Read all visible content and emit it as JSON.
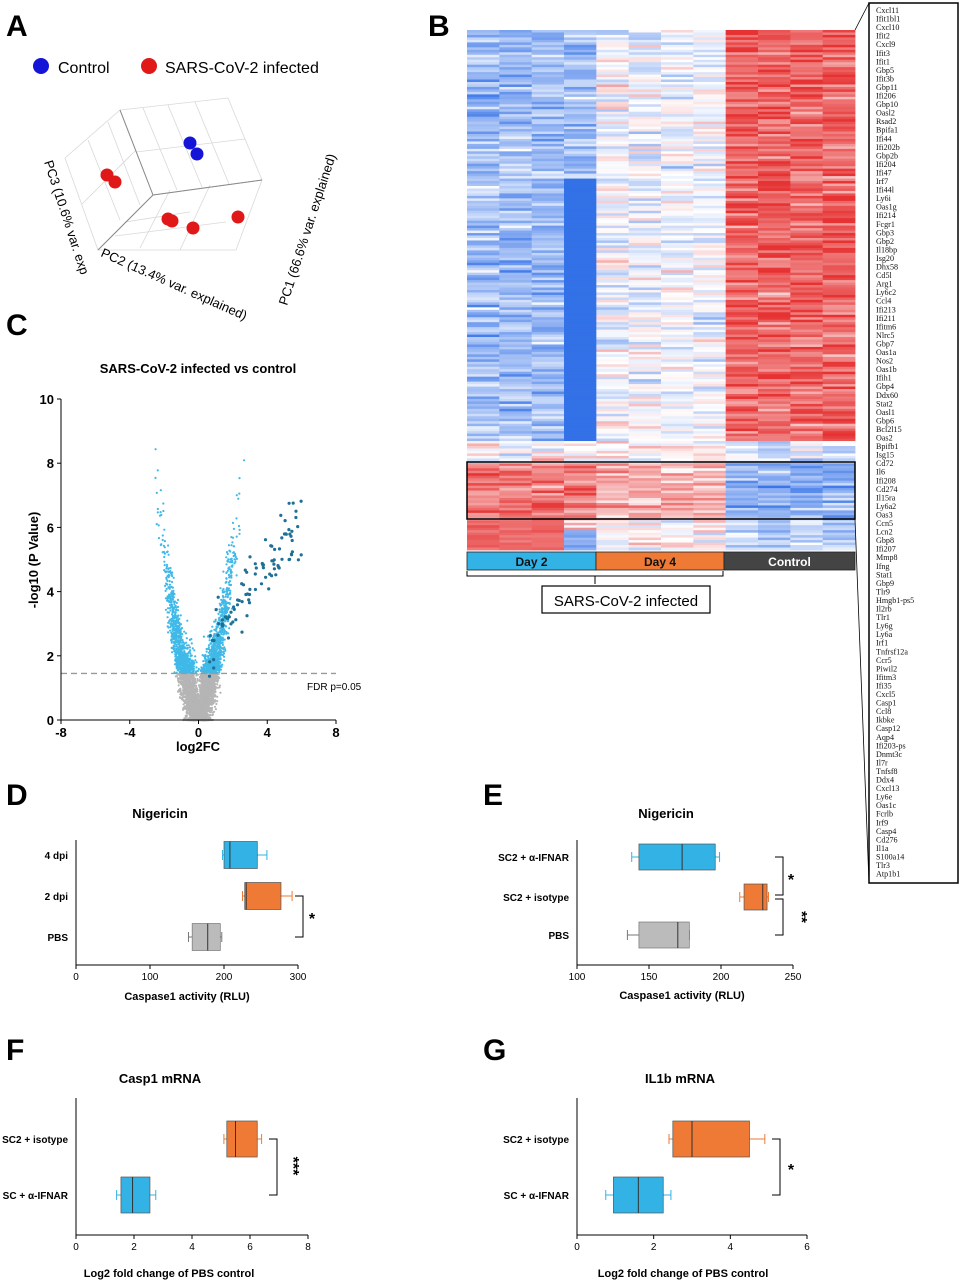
{
  "panels": {
    "A": {
      "letter": "A",
      "legend": [
        {
          "label": "Control",
          "color": "#1515d8"
        },
        {
          "label": "SARS-CoV-2 infected",
          "color": "#e01818"
        }
      ],
      "axis_labels": {
        "pc1": "PC1 (66.6% var. explained)",
        "pc2": "PC2 (13.4% var. explained)",
        "pc3": "PC3 (10.6% var. exp"
      },
      "chart_data": {
        "type": "scatter",
        "groups": [
          {
            "name": "Control",
            "count": 2
          },
          {
            "name": "SARS-CoV-2 infected",
            "count": 6
          }
        ]
      }
    },
    "B": {
      "letter": "B",
      "group_labels": [
        "Day 2",
        "Day 4",
        "Control"
      ],
      "group_colors": [
        "#33b2e6",
        "#ee7a35",
        "#444444"
      ],
      "bracket_label": "SARS-CoV-2 infected",
      "genes": [
        "Cxcl11",
        "Ifit1bl1",
        "Cxcl10",
        "Ifit2",
        "Cxcl9",
        "Ifit3",
        "Ifit1",
        "Gbp5",
        "Ifit3b",
        "Gbp11",
        "Ifi206",
        "Gbp10",
        "Oasl2",
        "Rsad2",
        "Bpifa1",
        "Ifi44",
        "Ifi202b",
        "Gbp2b",
        "Ifi204",
        "Ifi47",
        "Irf7",
        "Ifi44l",
        "Ly6i",
        "Oas1g",
        "Ifi214",
        "Fcgr1",
        "Gbp3",
        "Gbp2",
        "Il18bp",
        "Isg20",
        "Dhx58",
        "Cd5l",
        "Arg1",
        "Ly6c2",
        "Ccl4",
        "Ifi213",
        "Ifi211",
        "Ifitm6",
        "Nlrc5",
        "Gbp7",
        "Oas1a",
        "Nos2",
        "Oas1b",
        "Ifih1",
        "Gbp4",
        "Ddx60",
        "Stat2",
        "Oasl1",
        "Gbp6",
        "Bcl2l15",
        "Oas2",
        "Bpifb1",
        "Isg15",
        "Cd72",
        "Il6",
        "Ifi208",
        "Cd274",
        "Il15ra",
        "Ly6a2",
        "Oas3",
        "Ccn5",
        "Lcn2",
        "Gbp8",
        "Ifi207",
        "Mmp8",
        "Ifng",
        "Stat1",
        "Gbp9",
        "Tlr9",
        "Hmgb1-ps5",
        "Il2rb",
        "Tlr1",
        "Ly6g",
        "Ly6a",
        "Irf1",
        "Tnfrsf12a",
        "Ccr5",
        "Piwil2",
        "Ifitm3",
        "Ifi35",
        "Cxcl5",
        "Casp1",
        "Ccl8",
        "Ikbke",
        "Casp12",
        "Aqp4",
        "Ifi203-ps",
        "Dnmt3c",
        "Il7r",
        "Tnfsf8",
        "Ddx4",
        "Cxcl13",
        "Ly6e",
        "Oas1c",
        "Fcrlb",
        "Irf9",
        "Casp4",
        "Cd276",
        "Il1a",
        "S100a14",
        "Tlr3",
        "Atp1b1"
      ]
    },
    "C": {
      "letter": "C",
      "title": "SARS-CoV-2 infected  vs  control",
      "xlabel": "log2FC",
      "ylabel": "-log10 (P Value)",
      "fdr_label": "FDR p=0.05",
      "chart_data": {
        "type": "scatter",
        "xlim": [
          -8,
          8
        ],
        "ylim": [
          0,
          10
        ],
        "xticks": [
          -8,
          -4,
          0,
          4,
          8
        ],
        "yticks": [
          0,
          2,
          4,
          6,
          8,
          10
        ],
        "fdr_threshold_y": 1.45
      }
    },
    "D": {
      "letter": "D",
      "title": "Nigericin",
      "xlabel": "Caspase1 activity (RLU)",
      "sig": "*",
      "chart_data": {
        "type": "bar",
        "categories": [
          "4 dpi",
          "2 dpi",
          "PBS"
        ],
        "xlim": [
          0,
          300
        ],
        "xticks": [
          0,
          100,
          200,
          300
        ],
        "boxes": [
          {
            "min": 198,
            "q1": 200,
            "median": 208,
            "q3": 245,
            "max": 258,
            "color": "#33b2e6"
          },
          {
            "min": 225,
            "q1": 228,
            "median": 230,
            "q3": 277,
            "max": 292,
            "color": "#ee7a35"
          },
          {
            "min": 152,
            "q1": 157,
            "median": 178,
            "q3": 195,
            "max": 197,
            "color": "#bbbbbb"
          }
        ]
      }
    },
    "E": {
      "letter": "E",
      "title": "Nigericin",
      "xlabel": "Caspase1 activity (RLU)",
      "sig": [
        "*",
        "**"
      ],
      "chart_data": {
        "type": "bar",
        "categories": [
          "SC2 + α-IFNAR",
          "SC2 + isotype",
          "PBS"
        ],
        "xlim": [
          100,
          250
        ],
        "xticks": [
          100,
          150,
          200,
          250
        ],
        "boxes": [
          {
            "min": 138,
            "q1": 143,
            "median": 173,
            "q3": 196,
            "max": 199,
            "color": "#33b2e6"
          },
          {
            "min": 213,
            "q1": 216,
            "median": 229,
            "q3": 232,
            "max": 233,
            "color": "#ee7a35"
          },
          {
            "min": 135,
            "q1": 143,
            "median": 170,
            "q3": 178,
            "max": 178,
            "color": "#bbbbbb"
          }
        ]
      }
    },
    "F": {
      "letter": "F",
      "title": "Casp1 mRNA",
      "xlabel": "Log2 fold change of PBS control",
      "sig": "***",
      "chart_data": {
        "type": "bar",
        "categories": [
          "SC2 + isotype",
          "SC + α-IFNAR"
        ],
        "xlim": [
          0,
          8
        ],
        "xticks": [
          0,
          2,
          4,
          6,
          8
        ],
        "boxes": [
          {
            "min": 5.1,
            "q1": 5.2,
            "median": 5.5,
            "q3": 6.25,
            "max": 6.4,
            "color": "#ee7a35"
          },
          {
            "min": 1.4,
            "q1": 1.55,
            "median": 1.95,
            "q3": 2.55,
            "max": 2.75,
            "color": "#33b2e6"
          }
        ]
      }
    },
    "G": {
      "letter": "G",
      "title": "IL1b mRNA",
      "xlabel": "Log2 fold change of PBS control",
      "sig": "*",
      "chart_data": {
        "type": "bar",
        "categories": [
          "SC2 + isotype",
          "SC + α-IFNAR"
        ],
        "xlim": [
          0,
          6
        ],
        "xticks": [
          0,
          2,
          4,
          6
        ],
        "boxes": [
          {
            "min": 2.4,
            "q1": 2.5,
            "median": 3.0,
            "q3": 4.5,
            "max": 4.9,
            "color": "#ee7a35"
          },
          {
            "min": 0.75,
            "q1": 0.95,
            "median": 1.6,
            "q3": 2.25,
            "max": 2.45,
            "color": "#33b2e6"
          }
        ]
      }
    }
  }
}
